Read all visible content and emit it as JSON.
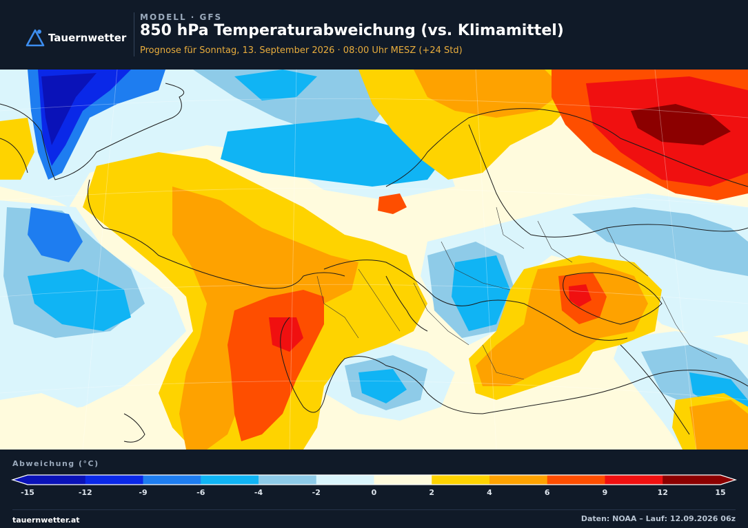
{
  "brand": {
    "name": "Tauernwetter",
    "logo_icon": "triangle-logo-icon"
  },
  "header": {
    "kicker": "MODELL · GFS",
    "title": "850 hPa Temperaturabweichung (vs. Klimamittel)",
    "subtitle": "Prognose für Sonntag, 13. September 2026 · 08:00 Uhr MESZ  (+24 Std)"
  },
  "legend": {
    "title": "Abweichung (°C)",
    "ticks": [
      "-15",
      "-12",
      "-9",
      "-6",
      "-4",
      "-2",
      "0",
      "2",
      "4",
      "6",
      "9",
      "12",
      "15"
    ],
    "colors": [
      "#0a12b8",
      "#0a28e8",
      "#1e7df0",
      "#10b4f4",
      "#8ecbe8",
      "#daf5fc",
      "#fffbdd",
      "#fed300",
      "#fea200",
      "#fe4e00",
      "#f01010",
      "#8c0000"
    ],
    "under_color": "#0a12b8",
    "over_color": "#8c0000"
  },
  "footer": {
    "site": "tauernwetter.at",
    "source": "Daten: NOAA – Lauf: 12.09.2026 06z"
  }
}
